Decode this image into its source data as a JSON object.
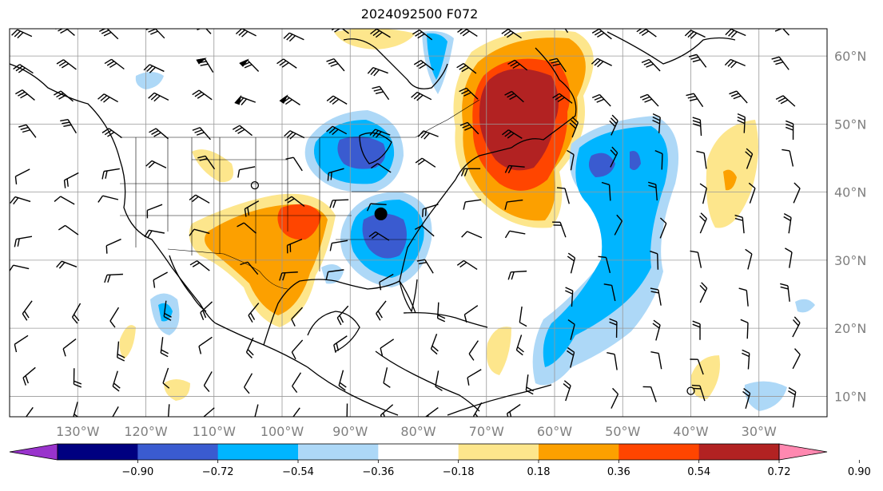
{
  "title": "2024092500 F072",
  "map": {
    "projection": "PlateCarree",
    "lon_range": [
      -140,
      -20
    ],
    "lat_range": [
      7,
      64
    ],
    "gridlines": true,
    "lon_labels": [
      {
        "lon": -130,
        "text": "130°W"
      },
      {
        "lon": -120,
        "text": "120°W"
      },
      {
        "lon": -110,
        "text": "110°W"
      },
      {
        "lon": -100,
        "text": "100°W"
      },
      {
        "lon": -90,
        "text": "90°W"
      },
      {
        "lon": -80,
        "text": "80°W"
      },
      {
        "lon": -70,
        "text": "70°W"
      },
      {
        "lon": -60,
        "text": "60°W"
      },
      {
        "lon": -50,
        "text": "50°W"
      },
      {
        "lon": -40,
        "text": "40°W"
      },
      {
        "lon": -30,
        "text": "30°W"
      }
    ],
    "lat_labels": [
      {
        "lat": 60,
        "text": "60°N"
      },
      {
        "lat": 50,
        "text": "50°N"
      },
      {
        "lat": 40,
        "text": "40°N"
      },
      {
        "lat": 30,
        "text": "30°N"
      },
      {
        "lat": 20,
        "text": "20°N"
      },
      {
        "lat": 10,
        "text": "10°N"
      }
    ]
  },
  "colorbar": {
    "extend": "both",
    "ticks": [
      "−0.90",
      "−0.72",
      "−0.54",
      "−0.36",
      "−0.18",
      "0.18",
      "0.36",
      "0.54",
      "0.72",
      "0.90"
    ],
    "colors": [
      "#9933cc",
      "#000080",
      "#3a5bd0",
      "#00b5ff",
      "#add8f7",
      "#ffffff",
      "#fde68c",
      "#fca000",
      "#ff4500",
      "#b22222",
      "#ff88b0"
    ]
  },
  "anomalies": [
    {
      "lon": -65,
      "lat": 50,
      "level": 9
    },
    {
      "lon": -97,
      "lat": 35,
      "level": 8
    },
    {
      "lon": -88,
      "lat": 47,
      "level": 3
    },
    {
      "lon": -85,
      "lat": 34,
      "level": 2
    },
    {
      "lon": -52,
      "lat": 43,
      "level": 3
    },
    {
      "lon": -52,
      "lat": 25,
      "level": 4
    }
  ],
  "markers": [
    {
      "lon": -85.5,
      "lat": 36.8,
      "symbol": "filled-circle"
    },
    {
      "lon": -104,
      "lat": 41,
      "symbol": "open-circle"
    },
    {
      "lon": -40,
      "lat": 10.8,
      "symbol": "open-circle"
    }
  ]
}
